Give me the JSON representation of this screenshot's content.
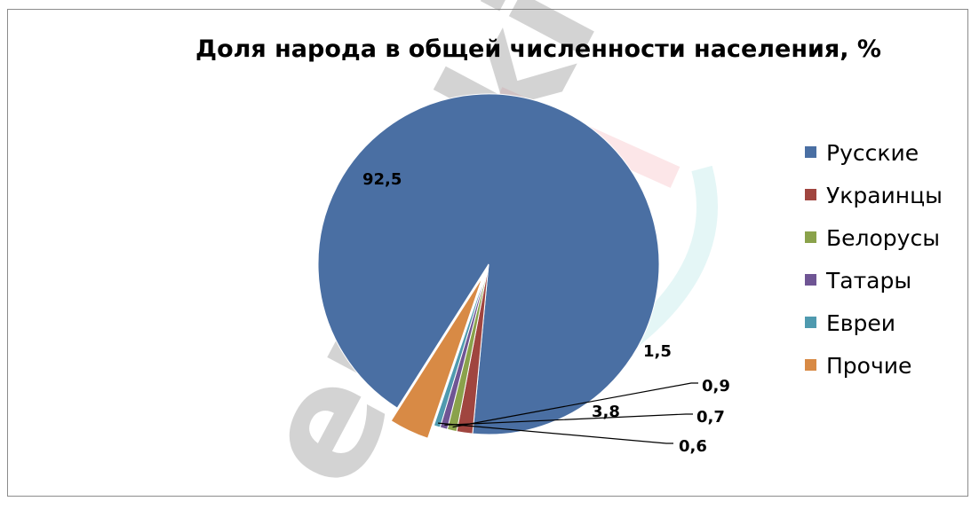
{
  "chart_data": {
    "type": "pie",
    "title": "Доля народа в общей численности населения, %",
    "categories": [
      "Русские",
      "Украинцы",
      "Белорусы",
      "Татары",
      "Евреи",
      "Прочие"
    ],
    "values": [
      92.5,
      1.5,
      0.9,
      0.7,
      0.6,
      3.8
    ],
    "data_labels": [
      "92,5",
      "1,5",
      "0,9",
      "0,7",
      "0,6",
      "3,8"
    ],
    "colors": [
      "#4a6fa3",
      "#a0453f",
      "#8aa24b",
      "#6f5594",
      "#4f9aaf",
      "#d88a45"
    ],
    "exploded": [
      "Прочие"
    ],
    "legend_position": "right"
  },
  "watermark": {
    "text": "euroki"
  }
}
